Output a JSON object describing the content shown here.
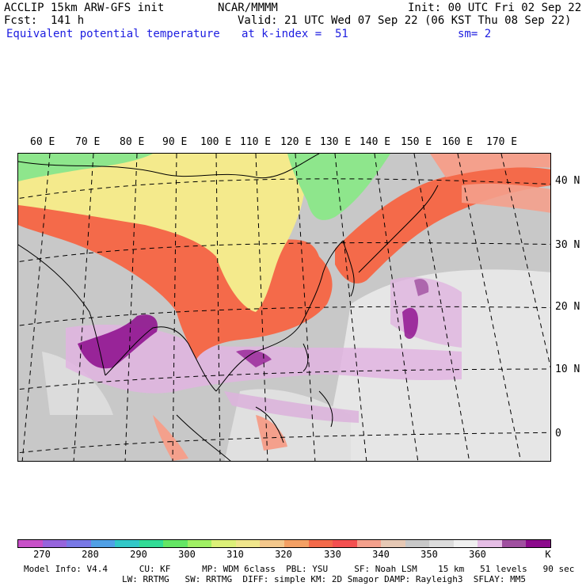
{
  "header": {
    "model": "ACCLIP 15km ARW-GFS init",
    "center": "NCAR/MMMM",
    "init": "Init: 00 UTC Fri 02 Sep 22",
    "fcst": "Fcst:  141 h",
    "valid": "Valid: 21 UTC Wed 07 Sep 22 (06 KST Thu 08 Sep 22)",
    "field": "Equivalent potential temperature",
    "level": "at k-index =  51",
    "smooth": "sm= 2"
  },
  "map": {
    "lon_labels": [
      "60 E",
      "70 E",
      "80 E",
      "90 E",
      "100 E",
      "110 E",
      "120 E",
      "130 E",
      "140 E",
      "150 E",
      "160 E",
      "170 E"
    ],
    "lat_labels": [
      "40 N",
      "30 N",
      "20 N",
      "10 N",
      "0"
    ],
    "colors": {
      "ocean_gray": "#c8c8c8",
      "light_gray": "#e6e6e6",
      "yellow": "#f4ea8c",
      "green": "#8ee68c",
      "orange": "#f46a4a",
      "salmon": "#f49a7c",
      "lavender": "#e0b4e0",
      "purple": "#8c0a8c"
    }
  },
  "colorbar": {
    "unit": "K",
    "ticks": [
      "270",
      "280",
      "290",
      "300",
      "310",
      "320",
      "330",
      "340",
      "350",
      "360"
    ],
    "colors": [
      "#c850c8",
      "#9664dc",
      "#7878e6",
      "#50a0e6",
      "#32c8c8",
      "#32dc96",
      "#64e664",
      "#a0f064",
      "#dcf078",
      "#f0e68c",
      "#f4c88c",
      "#f4a064",
      "#f46a4a",
      "#f45050",
      "#f4a08c",
      "#e6c8b4",
      "#c8c8c8",
      "#dcdcdc",
      "#f0f0f0",
      "#e6bee6",
      "#a050a0",
      "#8c0a8c"
    ]
  },
  "footer": {
    "line1": "Model Info: V4.4      CU: KF      MP: WDM 6class  PBL: YSU     SF: Noah LSM    15 km   51 levels   90 sec",
    "line2": "LW: RRTMG   SW: RRTMG  DIFF: simple KM: 2D Smagor DAMP: Rayleigh3  SFLAY: MM5"
  }
}
